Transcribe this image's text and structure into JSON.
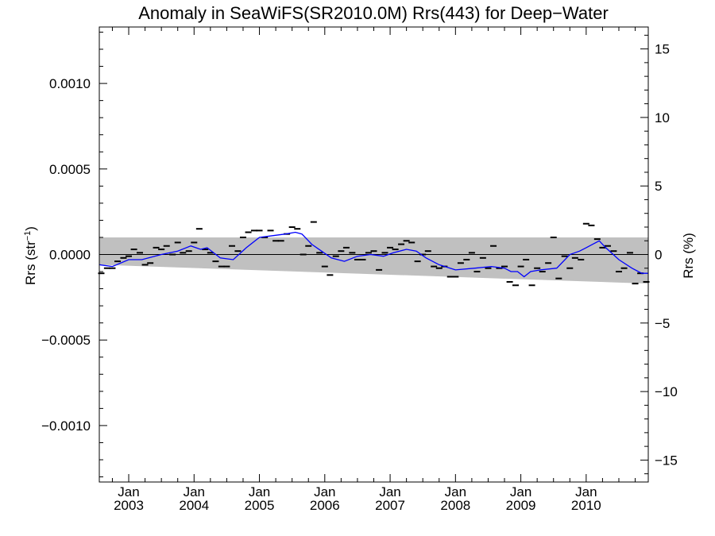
{
  "chart_data": {
    "type": "line",
    "title": "Anomaly in SeaWiFS(SR2010.0M) Rrs(443) for Deep−Water",
    "ylabel_left_base": "Rrs (str",
    "ylabel_left_exp": "−1",
    "ylabel_left_close": ")",
    "ylabel_right": "Rrs (%)",
    "xlim": [
      2002.55,
      2010.95
    ],
    "ylim_left": [
      -0.00133,
      0.00133
    ],
    "ylim_right": [
      -16.6,
      16.6
    ],
    "left_ticks": [
      {
        "v": 0.001,
        "label": "0.0010"
      },
      {
        "v": 0.0005,
        "label": "0.0005"
      },
      {
        "v": 0,
        "label": "0.0000"
      },
      {
        "v": -0.0005,
        "label": "−0.0005"
      },
      {
        "v": -0.001,
        "label": "−0.0010"
      }
    ],
    "right_ticks": [
      {
        "v": 15,
        "label": "15"
      },
      {
        "v": 10,
        "label": "10"
      },
      {
        "v": 5,
        "label": "5"
      },
      {
        "v": 0,
        "label": "0"
      },
      {
        "v": -5,
        "label": "−5"
      },
      {
        "v": -10,
        "label": "−10"
      },
      {
        "v": -15,
        "label": "−15"
      }
    ],
    "x_ticks": [
      {
        "v": 2003.0,
        "month": "Jan",
        "year": "2003"
      },
      {
        "v": 2004.0,
        "month": "Jan",
        "year": "2004"
      },
      {
        "v": 2005.0,
        "month": "Jan",
        "year": "2005"
      },
      {
        "v": 2006.0,
        "month": "Jan",
        "year": "2006"
      },
      {
        "v": 2007.0,
        "month": "Jan",
        "year": "2007"
      },
      {
        "v": 2008.0,
        "month": "Jan",
        "year": "2008"
      },
      {
        "v": 2009.0,
        "month": "Jan",
        "year": "2009"
      },
      {
        "v": 2010.0,
        "month": "Jan",
        "year": "2010"
      }
    ],
    "band": {
      "upper": [
        0.0001,
        0.0001
      ],
      "lower": [
        -6e-05,
        -0.00017
      ]
    },
    "zero_line": 0,
    "colors": {
      "band": "#c0c0c0",
      "line": "#0000ff",
      "marker": "#000000",
      "zero": "#000000"
    },
    "series": [
      {
        "kind": "markers",
        "x": [
          2002.58,
          2002.67,
          2002.75,
          2002.83,
          2002.92,
          2003.0,
          2003.08,
          2003.17,
          2003.25,
          2003.33,
          2003.42,
          2003.5,
          2003.58,
          2003.67,
          2003.75,
          2003.83,
          2003.92,
          2004.0,
          2004.08,
          2004.17,
          2004.25,
          2004.33,
          2004.42,
          2004.5,
          2004.58,
          2004.67,
          2004.75,
          2004.83,
          2004.92,
          2005.0,
          2005.08,
          2005.17,
          2005.25,
          2005.33,
          2005.42,
          2005.5,
          2005.58,
          2005.67,
          2005.75,
          2005.83,
          2005.92,
          2006.0,
          2006.08,
          2006.17,
          2006.25,
          2006.33,
          2006.42,
          2006.5,
          2006.58,
          2006.67,
          2006.75,
          2006.83,
          2006.92,
          2007.0,
          2007.08,
          2007.17,
          2007.25,
          2007.33,
          2007.42,
          2007.5,
          2007.58,
          2007.67,
          2007.75,
          2007.83,
          2007.92,
          2008.0,
          2008.08,
          2008.17,
          2008.25,
          2008.33,
          2008.42,
          2008.5,
          2008.58,
          2008.67,
          2008.75,
          2008.83,
          2008.92,
          2009.0,
          2009.08,
          2009.17,
          2009.25,
          2009.33,
          2009.42,
          2009.5,
          2009.58,
          2009.67,
          2009.75,
          2009.83,
          2009.92,
          2010.0,
          2010.08,
          2010.17,
          2010.25,
          2010.33,
          2010.42,
          2010.5,
          2010.58,
          2010.67,
          2010.75,
          2010.83,
          2010.92
        ],
        "y": [
          -0.00011,
          -8e-05,
          -8e-05,
          -4e-05,
          -2e-05,
          -1e-05,
          3e-05,
          1e-05,
          -6e-05,
          -5e-05,
          4e-05,
          3e-05,
          5e-05,
          0.0,
          7e-05,
          1e-05,
          2e-05,
          7e-05,
          0.00015,
          3e-05,
          1e-05,
          -4e-05,
          -7e-05,
          -7e-05,
          5e-05,
          2e-05,
          0.0001,
          0.00013,
          0.00014,
          0.00014,
          0.0001,
          0.00014,
          8e-05,
          8e-05,
          0.00012,
          0.00016,
          0.00015,
          0.0,
          5e-05,
          0.00019,
          1e-05,
          -7e-05,
          -0.00012,
          -1e-05,
          2e-05,
          4e-05,
          1e-05,
          -3e-05,
          -3e-05,
          1e-05,
          2e-05,
          -9e-05,
          1e-05,
          4e-05,
          3e-05,
          6e-05,
          8e-05,
          7e-05,
          -4e-05,
          0.0,
          2e-05,
          -7e-05,
          -8e-05,
          -7e-05,
          -0.00013,
          -0.00013,
          -5e-05,
          -3e-05,
          1e-05,
          -0.0001,
          -2e-05,
          -8e-05,
          5e-05,
          -8e-05,
          -7e-05,
          -0.00016,
          -0.00018,
          -7e-05,
          -3e-05,
          -0.00018,
          -8e-05,
          -0.0001,
          -5e-05,
          0.0001,
          -0.00014,
          -1e-05,
          -8e-05,
          -2e-05,
          -3e-05,
          0.00018,
          0.00017,
          9e-05,
          4e-05,
          5e-05,
          2e-05,
          -0.0001,
          -8e-05,
          1e-05,
          -0.00017,
          -0.00011,
          -0.00016
        ]
      },
      {
        "kind": "line",
        "x": [
          2002.55,
          2002.75,
          2003.0,
          2003.2,
          2003.5,
          2003.75,
          2003.95,
          2004.1,
          2004.2,
          2004.4,
          2004.6,
          2004.8,
          2005.0,
          2005.2,
          2005.4,
          2005.55,
          2005.65,
          2005.8,
          2005.95,
          2006.1,
          2006.3,
          2006.5,
          2006.7,
          2006.9,
          2007.05,
          2007.25,
          2007.4,
          2007.55,
          2007.75,
          2008.0,
          2008.3,
          2008.55,
          2008.75,
          2008.85,
          2008.95,
          2009.05,
          2009.15,
          2009.3,
          2009.55,
          2009.75,
          2009.9,
          2010.0,
          2010.1,
          2010.2,
          2010.3,
          2010.5,
          2010.7,
          2010.85,
          2010.95
        ],
        "y": [
          -6e-05,
          -7e-05,
          -3e-05,
          -3e-05,
          0.0,
          2e-05,
          5e-05,
          3e-05,
          4e-05,
          -2e-05,
          -3e-05,
          4e-05,
          0.0001,
          0.00011,
          0.00012,
          0.00013,
          0.00012,
          6e-05,
          2e-05,
          -2e-05,
          -4e-05,
          -1e-05,
          0.0,
          -1e-05,
          1e-05,
          3e-05,
          2e-05,
          -2e-05,
          -6e-05,
          -9e-05,
          -8e-05,
          -7e-05,
          -8e-05,
          -0.0001,
          -0.0001,
          -0.00013,
          -0.0001,
          -9e-05,
          -8e-05,
          0.0,
          2e-05,
          4e-05,
          6e-05,
          8e-05,
          4e-05,
          -3e-05,
          -8e-05,
          -0.00011,
          -0.00011
        ]
      }
    ]
  }
}
